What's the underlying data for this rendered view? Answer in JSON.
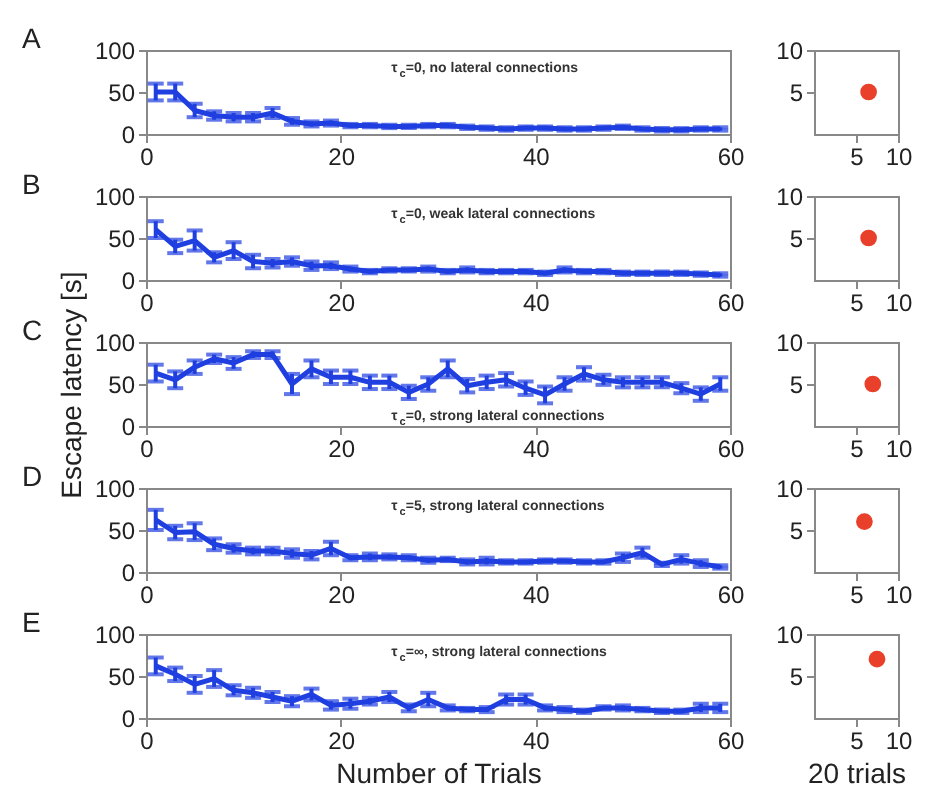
{
  "chart_data": [
    {
      "type": "line",
      "annotations": [
        "A",
        "τ$_{c}$=0, no lateral connections"
      ],
      "x": [
        1,
        3,
        5,
        7,
        9,
        11,
        13,
        15,
        17,
        19,
        21,
        23,
        25,
        27,
        29,
        31,
        33,
        35,
        37,
        39,
        41,
        43,
        45,
        47,
        49,
        51,
        53,
        55,
        57,
        59
      ],
      "xlim": [
        0,
        60
      ],
      "ylim": [
        0,
        100
      ],
      "xticks": [
        0,
        20,
        40,
        60
      ],
      "yticks": [
        0,
        50,
        100
      ],
      "grid": false,
      "series": [
        {
          "color": "#1f3fe0",
          "values": [
            50,
            50,
            28,
            22,
            20,
            20,
            25,
            15,
            12,
            13,
            10,
            10,
            9,
            9,
            10,
            10,
            8,
            7,
            6,
            7,
            7,
            6,
            6,
            7,
            8,
            6,
            5,
            5,
            6,
            6
          ],
          "errors": [
            10,
            10,
            8,
            5,
            5,
            5,
            6,
            4,
            3,
            3,
            2,
            2,
            2,
            2,
            2,
            2,
            2,
            2,
            2,
            2,
            2,
            2,
            2,
            2,
            2,
            2,
            2,
            2,
            2,
            2
          ]
        }
      ]
    },
    {
      "type": "scatter",
      "xlim": [
        0,
        10
      ],
      "ylim": [
        0,
        10
      ],
      "xticks": [
        5,
        10
      ],
      "yticks": [
        5,
        10
      ],
      "x": [
        6.5
      ],
      "series": [
        {
          "color": "#e8402a",
          "values": [
            5
          ]
        }
      ]
    },
    {
      "type": "line",
      "annotations": [
        "B",
        "τ$_{c}$=0, weak lateral connections"
      ],
      "x": [
        1,
        3,
        5,
        7,
        9,
        11,
        13,
        15,
        17,
        19,
        21,
        23,
        25,
        27,
        29,
        31,
        33,
        35,
        37,
        39,
        41,
        43,
        45,
        47,
        49,
        51,
        53,
        55,
        57,
        59
      ],
      "xlim": [
        0,
        60
      ],
      "ylim": [
        0,
        100
      ],
      "xticks": [
        0,
        20,
        40,
        60
      ],
      "yticks": [
        0,
        50,
        100
      ],
      "grid": false,
      "series": [
        {
          "color": "#1f3fe0",
          "values": [
            60,
            40,
            47,
            27,
            35,
            22,
            20,
            22,
            17,
            17,
            13,
            10,
            12,
            12,
            13,
            10,
            12,
            10,
            10,
            10,
            8,
            12,
            10,
            10,
            8,
            8,
            8,
            8,
            7,
            6
          ],
          "errors": [
            10,
            8,
            12,
            6,
            10,
            8,
            5,
            5,
            5,
            4,
            3,
            2,
            2,
            2,
            3,
            2,
            3,
            2,
            2,
            2,
            2,
            3,
            2,
            2,
            2,
            2,
            2,
            2,
            2,
            2
          ]
        }
      ]
    },
    {
      "type": "scatter",
      "xlim": [
        0,
        10
      ],
      "ylim": [
        0,
        10
      ],
      "xticks": [
        5,
        10
      ],
      "yticks": [
        5,
        10
      ],
      "x": [
        6.5
      ],
      "series": [
        {
          "color": "#e8402a",
          "values": [
            5
          ]
        }
      ]
    },
    {
      "type": "line",
      "ylabel": "Escape latency [s]",
      "annotations": [
        "C",
        "τ$_{c}$=0, strong lateral connections"
      ],
      "x": [
        1,
        3,
        5,
        7,
        9,
        11,
        13,
        15,
        17,
        19,
        21,
        23,
        25,
        27,
        29,
        31,
        33,
        35,
        37,
        39,
        41,
        43,
        45,
        47,
        49,
        51,
        53,
        55,
        57,
        59
      ],
      "xlim": [
        0,
        60
      ],
      "ylim": [
        0,
        100
      ],
      "xticks": [
        0,
        20,
        40,
        60
      ],
      "yticks": [
        0,
        50,
        100
      ],
      "grid": false,
      "series": [
        {
          "color": "#1f3fe0",
          "values": [
            63,
            55,
            70,
            80,
            75,
            85,
            85,
            50,
            68,
            58,
            58,
            52,
            52,
            40,
            50,
            68,
            48,
            52,
            55,
            45,
            37,
            50,
            62,
            55,
            52,
            52,
            52,
            45,
            38,
            50
          ],
          "errors": [
            10,
            10,
            8,
            5,
            7,
            4,
            4,
            12,
            10,
            8,
            8,
            8,
            8,
            8,
            8,
            10,
            8,
            8,
            8,
            8,
            10,
            8,
            8,
            6,
            6,
            6,
            6,
            6,
            8,
            8
          ]
        }
      ]
    },
    {
      "type": "scatter",
      "xlim": [
        0,
        10
      ],
      "ylim": [
        0,
        10
      ],
      "xticks": [
        5,
        10
      ],
      "yticks": [
        5,
        10
      ],
      "x": [
        7
      ],
      "series": [
        {
          "color": "#e8402a",
          "values": [
            5
          ]
        }
      ]
    },
    {
      "type": "line",
      "annotations": [
        "D",
        "τ$_{c}$=5, strong lateral connections"
      ],
      "x": [
        1,
        3,
        5,
        7,
        9,
        11,
        13,
        15,
        17,
        19,
        21,
        23,
        25,
        27,
        29,
        31,
        33,
        35,
        37,
        39,
        41,
        43,
        45,
        47,
        49,
        51,
        53,
        55,
        57,
        59
      ],
      "xlim": [
        0,
        60
      ],
      "ylim": [
        0,
        100
      ],
      "xticks": [
        0,
        20,
        40,
        60
      ],
      "yticks": [
        0,
        50,
        100
      ],
      "grid": false,
      "series": [
        {
          "color": "#1f3fe0",
          "values": [
            62,
            47,
            48,
            33,
            28,
            25,
            25,
            22,
            20,
            28,
            17,
            18,
            18,
            17,
            14,
            15,
            12,
            13,
            12,
            12,
            13,
            13,
            12,
            12,
            17,
            23,
            9,
            15,
            10,
            6
          ],
          "errors": [
            12,
            8,
            10,
            7,
            5,
            4,
            4,
            5,
            5,
            8,
            3,
            4,
            3,
            3,
            3,
            2,
            3,
            4,
            2,
            2,
            2,
            2,
            2,
            2,
            5,
            6,
            2,
            5,
            4,
            2
          ]
        }
      ]
    },
    {
      "type": "scatter",
      "xlim": [
        0,
        10
      ],
      "ylim": [
        0,
        10
      ],
      "xticks": [
        5,
        10
      ],
      "yticks": [
        5,
        10
      ],
      "x": [
        6
      ],
      "series": [
        {
          "color": "#e8402a",
          "values": [
            6
          ]
        }
      ]
    },
    {
      "type": "line",
      "xlabel": "Number of Trials",
      "annotations": [
        "E",
        "τ$_{c}$=∞, strong lateral connections"
      ],
      "x": [
        1,
        3,
        5,
        7,
        9,
        11,
        13,
        15,
        17,
        19,
        21,
        23,
        25,
        27,
        29,
        31,
        33,
        35,
        37,
        39,
        41,
        43,
        45,
        47,
        49,
        51,
        53,
        55,
        57,
        59
      ],
      "xlim": [
        0,
        60
      ],
      "ylim": [
        0,
        100
      ],
      "xticks": [
        0,
        20,
        40,
        60
      ],
      "yticks": [
        0,
        50,
        100
      ],
      "grid": false,
      "series": [
        {
          "color": "#1f3fe0",
          "values": [
            62,
            52,
            40,
            47,
            33,
            30,
            25,
            20,
            28,
            15,
            17,
            20,
            25,
            12,
            22,
            12,
            10,
            10,
            22,
            22,
            12,
            10,
            8,
            12,
            12,
            10,
            8,
            8,
            12,
            12
          ],
          "errors": [
            10,
            8,
            10,
            10,
            6,
            6,
            6,
            6,
            7,
            5,
            6,
            4,
            6,
            4,
            8,
            3,
            2,
            3,
            6,
            6,
            3,
            3,
            2,
            2,
            3,
            2,
            2,
            2,
            5,
            5
          ]
        }
      ]
    },
    {
      "type": "scatter",
      "xlabel": "20 trials",
      "xlim": [
        0,
        10
      ],
      "ylim": [
        0,
        10
      ],
      "xticks": [
        5,
        10
      ],
      "yticks": [
        5,
        10
      ],
      "x": [
        7.5
      ],
      "series": [
        {
          "color": "#e8402a",
          "values": [
            7
          ]
        }
      ]
    }
  ]
}
